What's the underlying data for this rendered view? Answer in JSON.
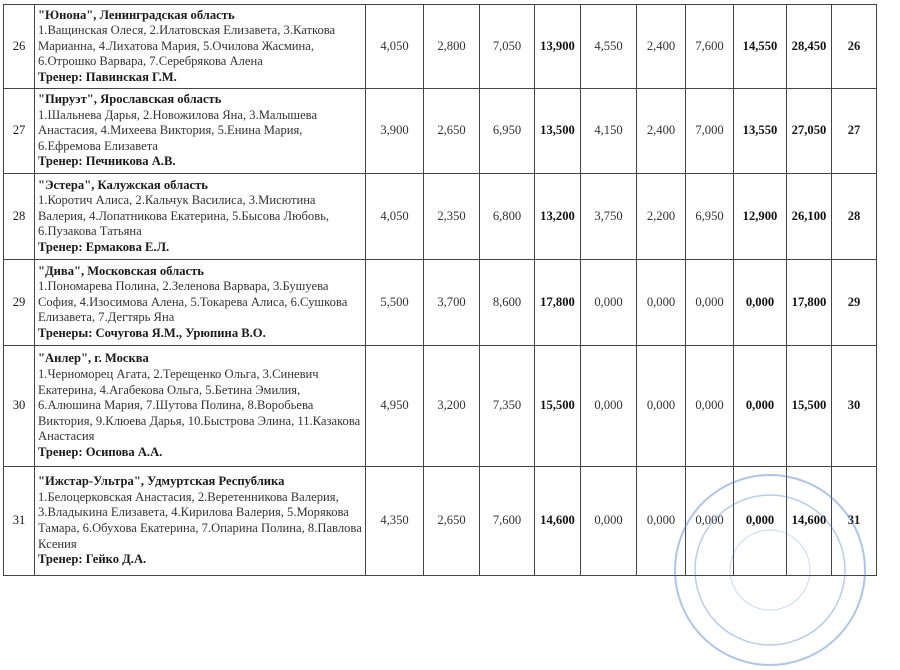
{
  "rows": [
    {
      "idx": "26",
      "team": "\"Юнона\", Ленинградская область",
      "members": "1.Ващинская Олеся, 2.Илатовская Елизавета, 3.Каткова Марианна, 4.Лихатова Мария, 5.Очилова Жасмина, 6.Отрошко Варвара, 7.Серебрякова Алена",
      "coach": "Тренер: Павинская Г.М.",
      "v": [
        "4,050",
        "2,800",
        "7,050",
        "13,900",
        "4,550",
        "2,400",
        "7,600",
        "14,550",
        "28,450"
      ],
      "place": "26"
    },
    {
      "idx": "27",
      "team": "\"Пируэт\", Ярославская область",
      "members": "1.Шальнева Дарья, 2.Новожилова Яна, 3.Малышева Анастасия, 4.Михеева Виктория, 5.Енина Мария, 6.Ефремова Елизавета",
      "coach": "Тренер: Печникова А.В.",
      "v": [
        "3,900",
        "2,650",
        "6,950",
        "13,500",
        "4,150",
        "2,400",
        "7,000",
        "13,550",
        "27,050"
      ],
      "place": "27"
    },
    {
      "idx": "28",
      "team": "\"Эстера\", Калужская область",
      "members": "1.Коротич Алиса, 2.Кальчук Василиса, 3.Мисютина Валерия, 4.Лопатникова Екатерина, 5.Бысова Любовь, 6.Пузакова Татьяна",
      "coach": "Тренер: Ермакова Е.Л.",
      "v": [
        "4,050",
        "2,350",
        "6,800",
        "13,200",
        "3,750",
        "2,200",
        "6,950",
        "12,900",
        "26,100"
      ],
      "place": "28"
    },
    {
      "idx": "29",
      "team": "\"Дива\", Московская область",
      "members": "1.Пономарева Полина, 2.Зеленова Варвара, 3.Бушуева София, 4.Изосимова Алена, 5.Токарева Алиса, 6.Сушкова Елизавета, 7.Дегтярь Яна",
      "coach": "Тренеры: Сочугова Я.М., Урюпина В.О.",
      "v": [
        "5,500",
        "3,700",
        "8,600",
        "17,800",
        "0,000",
        "0,000",
        "0,000",
        "0,000",
        "17,800"
      ],
      "place": "29"
    },
    {
      "idx": "30",
      "team": "\"Анлер\", г. Москва",
      "members": "1.Черноморец Агата, 2.Терещенко Ольга, 3.Синевич Екатерина, 4.Агабекова Ольга, 5.Бетина Эмилия, 6.Алюшина Мария, 7.Шутова Полина, 8.Воробьева Виктория, 9.Клюева Дарья, 10.Быстрова Элина, 11.Казакова Анастасия",
      "coach": "Тренер: Осипова А.А.",
      "v": [
        "4,950",
        "3,200",
        "7,350",
        "15,500",
        "0,000",
        "0,000",
        "0,000",
        "0,000",
        "15,500"
      ],
      "place": "30"
    },
    {
      "idx": "31",
      "team": "\"Ижстар-Ультра\", Удмуртская Республика",
      "members": "1.Белоцерковская Анастасия, 2.Веретенникова Валерия, 3.Владыкина Елизавета, 4.Кирилова Валерия, 5.Морякова Тамара, 6.Обухова Екатерина, 7.Опарина Полина, 8.Павлова Ксения",
      "coach": "Тренер: Гейко Д.А.",
      "v": [
        "4,350",
        "2,650",
        "7,600",
        "14,600",
        "0,000",
        "0,000",
        "0,000",
        "0,000",
        "14,600"
      ],
      "place": "31"
    }
  ],
  "bold_columns": [
    3,
    7,
    8
  ],
  "stamp_color": "#4a7fd0"
}
